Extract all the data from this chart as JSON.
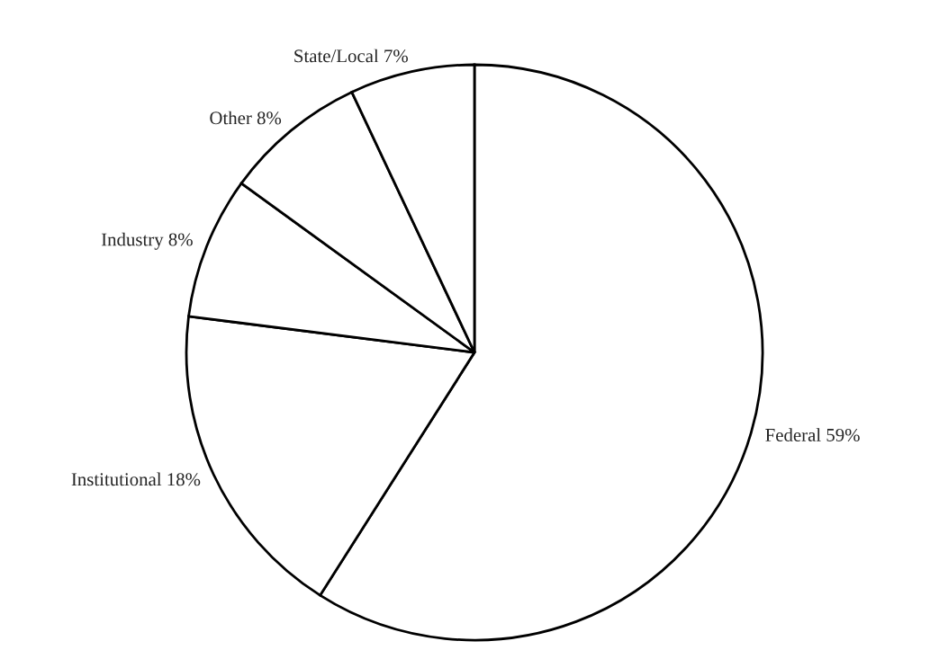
{
  "chart_data": {
    "type": "pie",
    "categories": [
      "Federal",
      "Institutional",
      "Industry",
      "Other",
      "State/Local"
    ],
    "values": [
      59,
      18,
      8,
      8,
      7
    ],
    "value_labels": [
      "59%",
      "18%",
      "8%",
      "8%",
      "7%"
    ],
    "colors": [
      "#ffffff",
      "#ffffff",
      "#ffffff",
      "#ffffff",
      "#ffffff"
    ],
    "legend": false
  }
}
